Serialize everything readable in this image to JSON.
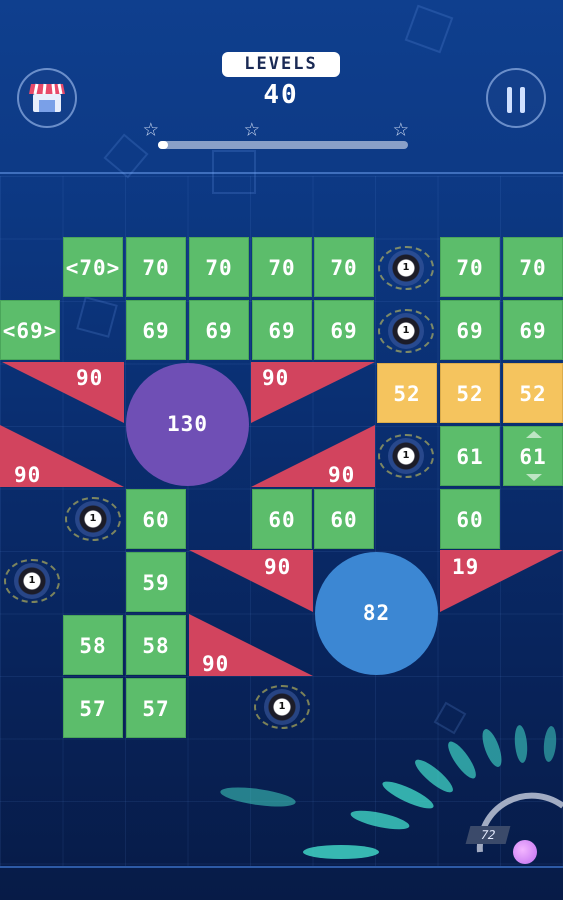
{
  "header": {
    "level_label": "LEVELS",
    "level_number": "40",
    "progress_fraction": 0.01,
    "stars_count": 3,
    "shop_icon": "shop-stall-icon",
    "pause_icon": "pause-icon"
  },
  "bricks": [
    {
      "label": "<70>",
      "color": "green"
    },
    {
      "label": "70",
      "color": "green"
    },
    {
      "label": "70",
      "color": "green"
    },
    {
      "label": "70",
      "color": "green"
    },
    {
      "label": "70",
      "color": "green"
    },
    {
      "label": "70",
      "color": "green"
    },
    {
      "label": "70",
      "color": "green"
    },
    {
      "label": "<69>",
      "color": "green"
    },
    {
      "label": "69",
      "color": "green"
    },
    {
      "label": "69",
      "color": "green"
    },
    {
      "label": "69",
      "color": "green"
    },
    {
      "label": "69",
      "color": "green"
    },
    {
      "label": "69",
      "color": "green"
    },
    {
      "label": "69",
      "color": "green"
    },
    {
      "label": "52",
      "color": "yellow"
    },
    {
      "label": "52",
      "color": "yellow"
    },
    {
      "label": "52",
      "color": "yellow"
    },
    {
      "label": "61",
      "color": "green"
    },
    {
      "label": "61",
      "color": "green"
    },
    {
      "label": "60",
      "color": "green"
    },
    {
      "label": "60",
      "color": "green"
    },
    {
      "label": "60",
      "color": "green"
    },
    {
      "label": "60",
      "color": "green"
    },
    {
      "label": "59",
      "color": "green"
    },
    {
      "label": "58",
      "color": "green"
    },
    {
      "label": "58",
      "color": "green"
    },
    {
      "label": "57",
      "color": "green"
    },
    {
      "label": "57",
      "color": "green"
    }
  ],
  "triangles": [
    "90",
    "90",
    "90",
    "90",
    "90",
    "19",
    "90"
  ],
  "circles": [
    "130",
    "82"
  ],
  "ball_pickups": [
    "1",
    "1",
    "1",
    "1",
    "1",
    "1"
  ],
  "shooter": {
    "ball_count": "72"
  },
  "colors": {
    "green": "#5cbd6b",
    "yellow": "#f5c45e",
    "triangle": "#d2445e",
    "circle_purple": "#6f4fb5",
    "circle_blue": "#3c87d3"
  }
}
